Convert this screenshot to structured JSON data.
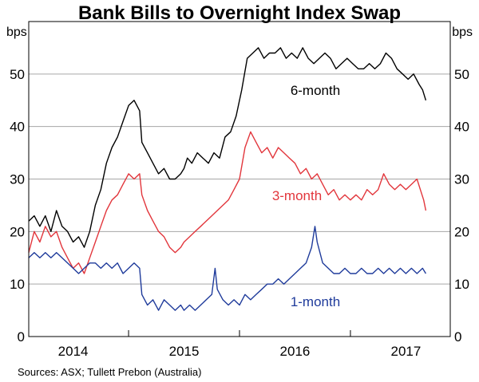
{
  "chart_data": {
    "type": "line",
    "title": "Bank Bills to Overnight Index Swap",
    "unit_left": "bps",
    "unit_right": "bps",
    "source": "Sources: ASX; Tullett Prebon (Australia)",
    "x_range": [
      2013.6,
      2017.4
    ],
    "x_ticks": [
      {
        "label": "2014",
        "value": 2014.0
      },
      {
        "label": "2015",
        "value": 2015.0
      },
      {
        "label": "2016",
        "value": 2016.0
      },
      {
        "label": "2017",
        "value": 2017.0
      }
    ],
    "x_year_boundaries": [
      2014.5,
      2015.5,
      2016.5
    ],
    "ylim": [
      0,
      60
    ],
    "y_ticks": [
      0,
      10,
      20,
      30,
      40,
      50
    ],
    "grid": true,
    "series": [
      {
        "name": "6-month",
        "label": "6-month",
        "color": "#000000",
        "label_color": "#000000",
        "points": [
          [
            2013.6,
            22
          ],
          [
            2013.65,
            23
          ],
          [
            2013.7,
            21
          ],
          [
            2013.75,
            23
          ],
          [
            2013.8,
            20
          ],
          [
            2013.85,
            24
          ],
          [
            2013.9,
            21
          ],
          [
            2013.95,
            20
          ],
          [
            2014.0,
            18
          ],
          [
            2014.05,
            19
          ],
          [
            2014.1,
            17
          ],
          [
            2014.15,
            20
          ],
          [
            2014.2,
            25
          ],
          [
            2014.25,
            28
          ],
          [
            2014.3,
            33
          ],
          [
            2014.35,
            36
          ],
          [
            2014.4,
            38
          ],
          [
            2014.45,
            41
          ],
          [
            2014.5,
            44
          ],
          [
            2014.55,
            45
          ],
          [
            2014.6,
            43
          ],
          [
            2014.62,
            37
          ],
          [
            2014.67,
            35
          ],
          [
            2014.72,
            33
          ],
          [
            2014.77,
            31
          ],
          [
            2014.82,
            32
          ],
          [
            2014.87,
            30
          ],
          [
            2014.92,
            30
          ],
          [
            2014.97,
            31
          ],
          [
            2015.0,
            32
          ],
          [
            2015.03,
            34
          ],
          [
            2015.07,
            33
          ],
          [
            2015.12,
            35
          ],
          [
            2015.17,
            34
          ],
          [
            2015.22,
            33
          ],
          [
            2015.27,
            35
          ],
          [
            2015.32,
            34
          ],
          [
            2015.37,
            38
          ],
          [
            2015.42,
            39
          ],
          [
            2015.47,
            42
          ],
          [
            2015.52,
            47
          ],
          [
            2015.57,
            53
          ],
          [
            2015.62,
            54
          ],
          [
            2015.67,
            55
          ],
          [
            2015.72,
            53
          ],
          [
            2015.77,
            54
          ],
          [
            2015.82,
            54
          ],
          [
            2015.87,
            55
          ],
          [
            2015.92,
            53
          ],
          [
            2015.97,
            54
          ],
          [
            2016.02,
            53
          ],
          [
            2016.07,
            55
          ],
          [
            2016.12,
            53
          ],
          [
            2016.17,
            52
          ],
          [
            2016.22,
            53
          ],
          [
            2016.27,
            54
          ],
          [
            2016.32,
            53
          ],
          [
            2016.37,
            51
          ],
          [
            2016.42,
            52
          ],
          [
            2016.47,
            53
          ],
          [
            2016.52,
            52
          ],
          [
            2016.57,
            51
          ],
          [
            2016.62,
            51
          ],
          [
            2016.67,
            52
          ],
          [
            2016.72,
            51
          ],
          [
            2016.77,
            52
          ],
          [
            2016.82,
            54
          ],
          [
            2016.87,
            53
          ],
          [
            2016.92,
            51
          ],
          [
            2016.97,
            50
          ],
          [
            2017.02,
            49
          ],
          [
            2017.07,
            50
          ],
          [
            2017.12,
            48
          ],
          [
            2017.15,
            47
          ],
          [
            2017.18,
            45
          ]
        ]
      },
      {
        "name": "3-month",
        "label": "3-month",
        "color": "#e2363c",
        "label_color": "#e2363c",
        "points": [
          [
            2013.6,
            16
          ],
          [
            2013.65,
            20
          ],
          [
            2013.7,
            18
          ],
          [
            2013.75,
            21
          ],
          [
            2013.8,
            19
          ],
          [
            2013.85,
            20
          ],
          [
            2013.9,
            17
          ],
          [
            2013.95,
            15
          ],
          [
            2014.0,
            13
          ],
          [
            2014.05,
            14
          ],
          [
            2014.1,
            12
          ],
          [
            2014.15,
            15
          ],
          [
            2014.2,
            18
          ],
          [
            2014.25,
            21
          ],
          [
            2014.3,
            24
          ],
          [
            2014.35,
            26
          ],
          [
            2014.4,
            27
          ],
          [
            2014.45,
            29
          ],
          [
            2014.5,
            31
          ],
          [
            2014.55,
            30
          ],
          [
            2014.6,
            31
          ],
          [
            2014.62,
            27
          ],
          [
            2014.67,
            24
          ],
          [
            2014.72,
            22
          ],
          [
            2014.77,
            20
          ],
          [
            2014.82,
            19
          ],
          [
            2014.87,
            17
          ],
          [
            2014.92,
            16
          ],
          [
            2014.97,
            17
          ],
          [
            2015.0,
            18
          ],
          [
            2015.05,
            19
          ],
          [
            2015.1,
            20
          ],
          [
            2015.15,
            21
          ],
          [
            2015.2,
            22
          ],
          [
            2015.25,
            23
          ],
          [
            2015.3,
            24
          ],
          [
            2015.35,
            25
          ],
          [
            2015.4,
            26
          ],
          [
            2015.45,
            28
          ],
          [
            2015.5,
            30
          ],
          [
            2015.55,
            36
          ],
          [
            2015.6,
            39
          ],
          [
            2015.65,
            37
          ],
          [
            2015.7,
            35
          ],
          [
            2015.75,
            36
          ],
          [
            2015.8,
            34
          ],
          [
            2015.85,
            36
          ],
          [
            2015.9,
            35
          ],
          [
            2015.95,
            34
          ],
          [
            2016.0,
            33
          ],
          [
            2016.05,
            31
          ],
          [
            2016.1,
            32
          ],
          [
            2016.15,
            30
          ],
          [
            2016.2,
            31
          ],
          [
            2016.25,
            29
          ],
          [
            2016.3,
            27
          ],
          [
            2016.35,
            28
          ],
          [
            2016.4,
            26
          ],
          [
            2016.45,
            27
          ],
          [
            2016.5,
            26
          ],
          [
            2016.55,
            27
          ],
          [
            2016.6,
            26
          ],
          [
            2016.65,
            28
          ],
          [
            2016.7,
            27
          ],
          [
            2016.75,
            28
          ],
          [
            2016.8,
            31
          ],
          [
            2016.85,
            29
          ],
          [
            2016.9,
            28
          ],
          [
            2016.95,
            29
          ],
          [
            2017.0,
            28
          ],
          [
            2017.05,
            29
          ],
          [
            2017.1,
            30
          ],
          [
            2017.13,
            28
          ],
          [
            2017.16,
            26
          ],
          [
            2017.18,
            24
          ]
        ]
      },
      {
        "name": "1-month",
        "label": "1-month",
        "color": "#1f3b9b",
        "label_color": "#1f3b9b",
        "points": [
          [
            2013.6,
            15
          ],
          [
            2013.65,
            16
          ],
          [
            2013.7,
            15
          ],
          [
            2013.75,
            16
          ],
          [
            2013.8,
            15
          ],
          [
            2013.85,
            16
          ],
          [
            2013.9,
            15
          ],
          [
            2013.95,
            14
          ],
          [
            2014.0,
            13
          ],
          [
            2014.05,
            12
          ],
          [
            2014.1,
            13
          ],
          [
            2014.15,
            14
          ],
          [
            2014.2,
            14
          ],
          [
            2014.25,
            13
          ],
          [
            2014.3,
            14
          ],
          [
            2014.35,
            13
          ],
          [
            2014.4,
            14
          ],
          [
            2014.45,
            12
          ],
          [
            2014.5,
            13
          ],
          [
            2014.55,
            14
          ],
          [
            2014.6,
            13
          ],
          [
            2014.62,
            8
          ],
          [
            2014.67,
            6
          ],
          [
            2014.72,
            7
          ],
          [
            2014.77,
            5
          ],
          [
            2014.82,
            7
          ],
          [
            2014.87,
            6
          ],
          [
            2014.92,
            5
          ],
          [
            2014.97,
            6
          ],
          [
            2015.0,
            5
          ],
          [
            2015.05,
            6
          ],
          [
            2015.1,
            5
          ],
          [
            2015.15,
            6
          ],
          [
            2015.2,
            7
          ],
          [
            2015.25,
            8
          ],
          [
            2015.28,
            13
          ],
          [
            2015.3,
            9
          ],
          [
            2015.35,
            7
          ],
          [
            2015.4,
            6
          ],
          [
            2015.45,
            7
          ],
          [
            2015.5,
            6
          ],
          [
            2015.55,
            8
          ],
          [
            2015.6,
            7
          ],
          [
            2015.65,
            8
          ],
          [
            2015.7,
            9
          ],
          [
            2015.75,
            10
          ],
          [
            2015.8,
            10
          ],
          [
            2015.85,
            11
          ],
          [
            2015.9,
            10
          ],
          [
            2015.95,
            11
          ],
          [
            2016.0,
            12
          ],
          [
            2016.05,
            13
          ],
          [
            2016.1,
            14
          ],
          [
            2016.15,
            17
          ],
          [
            2016.18,
            21
          ],
          [
            2016.2,
            18
          ],
          [
            2016.25,
            14
          ],
          [
            2016.3,
            13
          ],
          [
            2016.35,
            12
          ],
          [
            2016.4,
            12
          ],
          [
            2016.45,
            13
          ],
          [
            2016.5,
            12
          ],
          [
            2016.55,
            12
          ],
          [
            2016.6,
            13
          ],
          [
            2016.65,
            12
          ],
          [
            2016.7,
            12
          ],
          [
            2016.75,
            13
          ],
          [
            2016.8,
            12
          ],
          [
            2016.85,
            13
          ],
          [
            2016.9,
            12
          ],
          [
            2016.95,
            13
          ],
          [
            2017.0,
            12
          ],
          [
            2017.05,
            13
          ],
          [
            2017.1,
            12
          ],
          [
            2017.15,
            13
          ],
          [
            2017.18,
            12
          ]
        ]
      }
    ]
  }
}
